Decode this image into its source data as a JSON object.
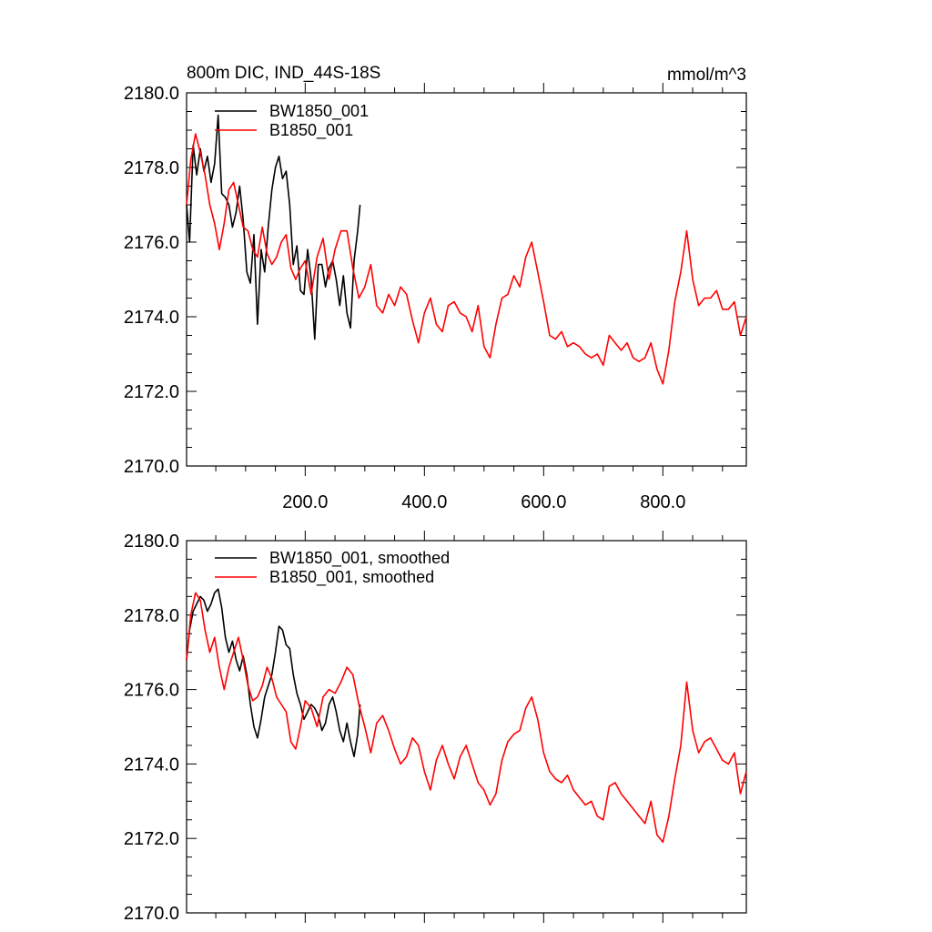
{
  "chart_data": [
    {
      "type": "line",
      "title": "800m DIC, IND_44S-18S",
      "units": "mmol/m^3",
      "xlabel": "",
      "ylabel": "",
      "xlim": [
        1,
        940
      ],
      "ylim": [
        2170,
        2180
      ],
      "y_ticks": [
        "2170.0",
        "2172.0",
        "2174.0",
        "2176.0",
        "2178.0",
        "2180.0"
      ],
      "x_ticks": [
        "200.0",
        "400.0",
        "600.0",
        "800.0"
      ],
      "grid": false,
      "legend_position": "top-left",
      "series": [
        {
          "name": "BW1850_001",
          "color": "#000000",
          "x": [
            1,
            6,
            12,
            18,
            24,
            30,
            36,
            42,
            48,
            54,
            60,
            66,
            72,
            78,
            84,
            90,
            96,
            102,
            108,
            114,
            120,
            126,
            132,
            138,
            144,
            150,
            156,
            162,
            168,
            174,
            180,
            186,
            192,
            198,
            204,
            210,
            216,
            222,
            228,
            234,
            240,
            246,
            252,
            258,
            264,
            270,
            276,
            282,
            288,
            292
          ],
          "values": [
            2177.0,
            2176.0,
            2178.6,
            2177.8,
            2178.5,
            2177.9,
            2178.3,
            2177.6,
            2178.1,
            2179.4,
            2177.3,
            2177.2,
            2177.0,
            2176.4,
            2176.8,
            2177.5,
            2176.6,
            2175.2,
            2174.9,
            2176.2,
            2173.8,
            2175.8,
            2175.2,
            2176.4,
            2177.4,
            2178.0,
            2178.3,
            2177.7,
            2177.9,
            2177.0,
            2175.4,
            2175.9,
            2174.7,
            2174.6,
            2175.8,
            2175.0,
            2173.4,
            2175.4,
            2175.4,
            2174.8,
            2175.3,
            2175.5,
            2175.0,
            2174.3,
            2175.1,
            2174.1,
            2173.7,
            2175.5,
            2176.3,
            2177.0
          ]
        },
        {
          "name": "B1850_001",
          "color": "#ff0000",
          "x": [
            1,
            8,
            16,
            24,
            32,
            40,
            48,
            56,
            64,
            72,
            80,
            88,
            96,
            104,
            112,
            120,
            128,
            136,
            144,
            152,
            160,
            168,
            176,
            184,
            192,
            200,
            210,
            220,
            230,
            240,
            250,
            260,
            270,
            280,
            290,
            300,
            310,
            320,
            330,
            340,
            350,
            360,
            370,
            380,
            390,
            400,
            410,
            420,
            430,
            440,
            450,
            460,
            470,
            480,
            490,
            500,
            510,
            520,
            530,
            540,
            550,
            560,
            570,
            580,
            590,
            600,
            610,
            620,
            630,
            640,
            650,
            660,
            670,
            680,
            690,
            700,
            710,
            720,
            730,
            740,
            750,
            760,
            770,
            780,
            790,
            800,
            810,
            820,
            830,
            840,
            850,
            860,
            870,
            880,
            890,
            900,
            910,
            920,
            930,
            940
          ],
          "values": [
            2177.0,
            2178.2,
            2178.9,
            2178.4,
            2177.8,
            2177.0,
            2176.5,
            2175.8,
            2176.5,
            2177.4,
            2177.6,
            2177.0,
            2176.4,
            2176.3,
            2175.8,
            2175.6,
            2176.4,
            2175.7,
            2175.4,
            2175.6,
            2176.0,
            2176.2,
            2175.3,
            2175.0,
            2175.3,
            2175.5,
            2174.6,
            2175.6,
            2176.1,
            2175.0,
            2175.8,
            2176.3,
            2176.3,
            2175.3,
            2174.5,
            2174.8,
            2175.4,
            2174.3,
            2174.1,
            2174.6,
            2174.3,
            2174.8,
            2174.6,
            2173.9,
            2173.3,
            2174.1,
            2174.5,
            2173.8,
            2173.6,
            2174.3,
            2174.4,
            2174.1,
            2174.0,
            2173.6,
            2174.3,
            2173.2,
            2172.9,
            2173.8,
            2174.5,
            2174.6,
            2175.1,
            2174.8,
            2175.6,
            2176.0,
            2175.2,
            2174.4,
            2173.5,
            2173.4,
            2173.6,
            2173.2,
            2173.3,
            2173.2,
            2173.0,
            2172.9,
            2173.0,
            2172.7,
            2173.5,
            2173.3,
            2173.1,
            2173.3,
            2172.9,
            2172.8,
            2172.9,
            2173.3,
            2172.6,
            2172.2,
            2173.1,
            2174.4,
            2175.2,
            2176.3,
            2175.0,
            2174.3,
            2174.5,
            2174.5,
            2174.7,
            2174.2,
            2174.2,
            2174.4,
            2173.5,
            2174.0
          ]
        }
      ]
    },
    {
      "type": "line",
      "title": "",
      "xlabel": "",
      "ylabel": "",
      "xlim": [
        1,
        940
      ],
      "ylim": [
        2170,
        2180
      ],
      "y_ticks": [
        "2170.0",
        "2172.0",
        "2174.0",
        "2176.0",
        "2178.0",
        "2180.0"
      ],
      "x_ticks": [],
      "grid": false,
      "legend_position": "top-left",
      "series": [
        {
          "name": "BW1850_001, smoothed",
          "color": "#000000",
          "x": [
            1,
            6,
            12,
            18,
            24,
            30,
            36,
            42,
            48,
            54,
            60,
            66,
            72,
            78,
            84,
            90,
            96,
            102,
            108,
            114,
            120,
            126,
            132,
            138,
            144,
            150,
            156,
            162,
            168,
            174,
            180,
            186,
            192,
            198,
            204,
            210,
            216,
            222,
            228,
            234,
            240,
            246,
            252,
            258,
            264,
            270,
            276,
            282,
            288,
            292
          ],
          "values": [
            2176.8,
            2177.6,
            2178.1,
            2178.3,
            2178.5,
            2178.4,
            2178.1,
            2178.3,
            2178.6,
            2178.7,
            2178.2,
            2177.4,
            2177.0,
            2177.3,
            2176.8,
            2176.5,
            2176.9,
            2176.4,
            2175.6,
            2175.0,
            2174.7,
            2175.2,
            2175.8,
            2176.1,
            2176.4,
            2177.0,
            2177.7,
            2177.6,
            2177.2,
            2177.1,
            2176.4,
            2175.9,
            2175.6,
            2175.2,
            2175.4,
            2175.6,
            2175.5,
            2175.3,
            2174.9,
            2175.1,
            2175.6,
            2175.8,
            2175.4,
            2174.9,
            2174.6,
            2175.1,
            2174.6,
            2174.2,
            2174.8,
            2175.6
          ]
        },
        {
          "name": "B1850_001, smoothed",
          "color": "#ff0000",
          "x": [
            1,
            8,
            16,
            24,
            32,
            40,
            48,
            56,
            64,
            72,
            80,
            88,
            96,
            104,
            112,
            120,
            128,
            136,
            144,
            152,
            160,
            168,
            176,
            184,
            192,
            200,
            210,
            220,
            230,
            240,
            250,
            260,
            270,
            280,
            290,
            300,
            310,
            320,
            330,
            340,
            350,
            360,
            370,
            380,
            390,
            400,
            410,
            420,
            430,
            440,
            450,
            460,
            470,
            480,
            490,
            500,
            510,
            520,
            530,
            540,
            550,
            560,
            570,
            580,
            590,
            600,
            610,
            620,
            630,
            640,
            650,
            660,
            670,
            680,
            690,
            700,
            710,
            720,
            730,
            740,
            750,
            760,
            770,
            780,
            790,
            800,
            810,
            820,
            830,
            840,
            850,
            860,
            870,
            880,
            890,
            900,
            910,
            920,
            930,
            940
          ],
          "values": [
            2176.8,
            2178.0,
            2178.6,
            2178.4,
            2177.6,
            2177.0,
            2177.4,
            2176.6,
            2176.0,
            2176.6,
            2177.0,
            2177.4,
            2176.8,
            2176.1,
            2175.7,
            2175.8,
            2176.1,
            2176.6,
            2176.3,
            2175.8,
            2175.6,
            2175.4,
            2174.6,
            2174.4,
            2175.0,
            2175.7,
            2175.5,
            2175.0,
            2175.8,
            2176.0,
            2175.9,
            2176.2,
            2176.6,
            2176.4,
            2175.6,
            2175.0,
            2174.3,
            2175.1,
            2175.3,
            2174.9,
            2174.4,
            2174.0,
            2174.2,
            2174.7,
            2174.5,
            2173.8,
            2173.3,
            2174.1,
            2174.5,
            2174.0,
            2173.6,
            2174.2,
            2174.5,
            2174.0,
            2173.5,
            2173.3,
            2172.9,
            2173.2,
            2174.1,
            2174.6,
            2174.8,
            2174.9,
            2175.5,
            2175.8,
            2175.2,
            2174.3,
            2173.8,
            2173.6,
            2173.5,
            2173.7,
            2173.3,
            2173.1,
            2172.9,
            2173.0,
            2172.6,
            2172.5,
            2173.4,
            2173.5,
            2173.2,
            2173.0,
            2172.8,
            2172.6,
            2172.4,
            2173.0,
            2172.1,
            2171.9,
            2172.6,
            2173.6,
            2174.5,
            2176.2,
            2174.9,
            2174.3,
            2174.6,
            2174.7,
            2174.4,
            2174.1,
            2174.0,
            2174.3,
            2173.2,
            2173.8
          ]
        }
      ]
    }
  ]
}
